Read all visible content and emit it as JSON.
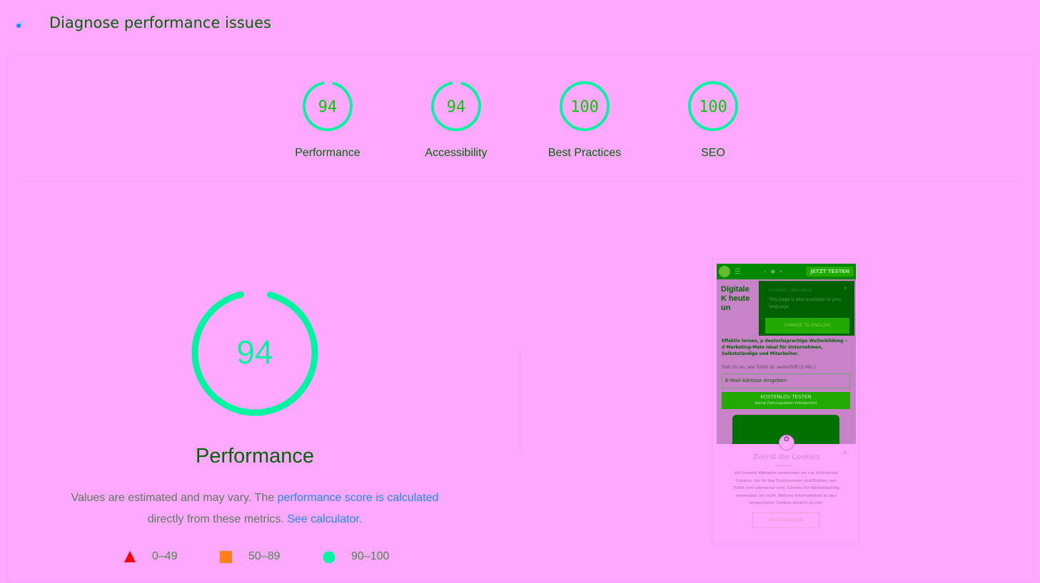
{
  "header": {
    "title": "Diagnose performance issues",
    "icon": "lighthouse-icon"
  },
  "colors": {
    "background": "#ffa8ff",
    "pass": "#00f5a0",
    "score_text": "#00cc00",
    "title": "#006400",
    "link": "#1a8cff",
    "fail": "#ff0000",
    "average": "#ff7f1a"
  },
  "scores": [
    {
      "label": "Performance",
      "score": 94
    },
    {
      "label": "Accessibility",
      "score": 94
    },
    {
      "label": "Best Practices",
      "score": 100
    },
    {
      "label": "SEO",
      "score": 100
    }
  ],
  "main": {
    "score": 94,
    "title": "Performance",
    "desc_prefix": "Values are estimated and may vary. The ",
    "desc_link": "performance score is calculated",
    "desc_mid": " directly from these metrics. ",
    "calc_link": "See calculator."
  },
  "legend": [
    {
      "shape": "triangle",
      "range": "0–49"
    },
    {
      "shape": "square",
      "range": "50–89"
    },
    {
      "shape": "circle",
      "range": "90–100"
    }
  ],
  "screenshot": {
    "cta": "JETZT TESTEN",
    "headline": "Digitale K heute un",
    "intro": "Effektiv lernen, p deutschsprachige Weiterbildung – d Marketing-Mate Ideal für Unternehmen, Selbstständige und Mitarbeiter.",
    "sub": "Sieh dir an, wie TutKit dir weiterhilft (2 Min.).",
    "lang_title": "CHANGE LANGUAGE",
    "lang_text": "This page is also available in your language.",
    "lang_button": "CHANGE TO ENGLISH",
    "email_placeholder": "E-Mail-Adresse eingeben",
    "free_button": "KOSTENLOS TESTEN",
    "free_sub": "(keine Zahlungsdaten erforderlich)",
    "cookie_title": "Zuerst die Cookies",
    "cookie_text": "Auf unserer Webseite verwenden wir nur funktionale Cookies, die für das Funktionieren und Erleben von TutKit.com elementar sind. Cookies für Werbetracking verwenden wir nicht. Weitere Informationen zu den verwendeten Cookies erhältst du hier.",
    "cookie_button": "VERSTANDEN"
  }
}
